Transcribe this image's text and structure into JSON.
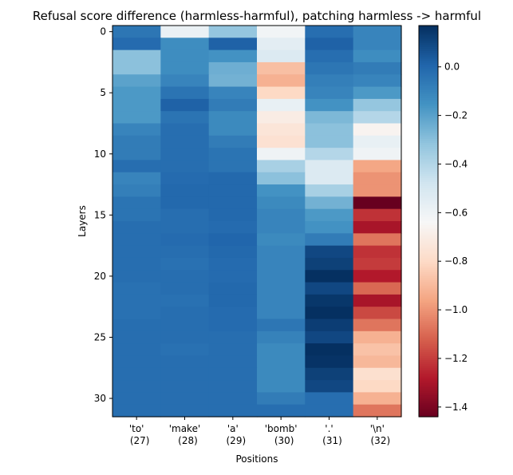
{
  "chart_data": {
    "type": "heatmap",
    "title": "Refusal score difference (harmless-harmful), patching harmless -> harmful",
    "xlabel": "Positions",
    "ylabel": "Layers",
    "columns": [
      {
        "token": "'to'",
        "position": "(27)"
      },
      {
        "token": "'make'",
        "position": "(28)"
      },
      {
        "token": "'a'",
        "position": "(29)"
      },
      {
        "token": "'bomb'",
        "position": "(30)"
      },
      {
        "token": "'.'",
        "position": "(31)"
      },
      {
        "token": "'\\n'",
        "position": "(32)"
      }
    ],
    "ytick_values": [
      0,
      5,
      10,
      15,
      20,
      25,
      30
    ],
    "rows": 32,
    "colormap": "RdBu",
    "color_range": [
      -1.44,
      0.17
    ],
    "colorbar_ticks": [
      0.0,
      -0.2,
      -0.4,
      -0.6,
      -0.8,
      -1.0,
      -1.2,
      -1.4
    ],
    "colorbar_tick_labels": [
      "0.0",
      "−0.2",
      "−0.4",
      "−0.6",
      "−0.8",
      "−1.0",
      "−1.2",
      "−1.4"
    ],
    "values": [
      [
        -0.05,
        -0.58,
        -0.32,
        -0.61,
        -0.02,
        -0.1
      ],
      [
        -0.01,
        -0.13,
        0.02,
        -0.55,
        0.02,
        -0.1
      ],
      [
        -0.3,
        -0.13,
        -0.15,
        -0.52,
        -0.02,
        -0.13
      ],
      [
        -0.3,
        -0.13,
        -0.24,
        -0.88,
        -0.05,
        -0.07
      ],
      [
        -0.2,
        -0.1,
        -0.25,
        -0.92,
        -0.08,
        -0.1
      ],
      [
        -0.17,
        -0.04,
        -0.1,
        -0.8,
        -0.1,
        -0.17
      ],
      [
        -0.17,
        0.02,
        -0.07,
        -0.57,
        -0.15,
        -0.32
      ],
      [
        -0.17,
        -0.04,
        -0.12,
        -0.7,
        -0.27,
        -0.4
      ],
      [
        -0.1,
        -0.02,
        -0.12,
        -0.74,
        -0.3,
        -0.66
      ],
      [
        -0.07,
        -0.02,
        -0.07,
        -0.76,
        -0.3,
        -0.57
      ],
      [
        -0.07,
        -0.02,
        -0.04,
        -0.6,
        -0.4,
        -0.6
      ],
      [
        -0.02,
        -0.02,
        -0.04,
        -0.37,
        -0.52,
        -0.95
      ],
      [
        -0.1,
        -0.01,
        0.0,
        -0.3,
        -0.52,
        -1.0
      ],
      [
        -0.08,
        0.0,
        0.0,
        -0.15,
        -0.37,
        -1.0
      ],
      [
        -0.04,
        0.0,
        0.0,
        -0.12,
        -0.25,
        -1.44
      ],
      [
        -0.04,
        -0.02,
        0.0,
        -0.1,
        -0.17,
        -1.22
      ],
      [
        -0.02,
        -0.02,
        -0.01,
        -0.1,
        -0.15,
        -1.3
      ],
      [
        -0.02,
        -0.01,
        0.01,
        -0.12,
        -0.07,
        -1.07
      ],
      [
        -0.02,
        -0.02,
        0.0,
        -0.1,
        0.1,
        -1.22
      ],
      [
        -0.02,
        -0.03,
        -0.01,
        -0.1,
        0.12,
        -1.2
      ],
      [
        -0.02,
        -0.02,
        -0.01,
        -0.1,
        0.17,
        -1.28
      ],
      [
        -0.03,
        -0.02,
        0.0,
        -0.1,
        0.1,
        -1.1
      ],
      [
        -0.03,
        -0.03,
        0.0,
        -0.1,
        0.15,
        -1.3
      ],
      [
        -0.03,
        -0.02,
        -0.01,
        -0.1,
        0.17,
        -1.17
      ],
      [
        -0.02,
        -0.02,
        -0.01,
        -0.05,
        0.13,
        -1.07
      ],
      [
        -0.02,
        -0.02,
        -0.02,
        -0.09,
        0.1,
        -0.92
      ],
      [
        -0.02,
        -0.03,
        -0.02,
        -0.12,
        0.17,
        -0.87
      ],
      [
        -0.02,
        -0.02,
        -0.02,
        -0.12,
        0.16,
        -0.9
      ],
      [
        -0.02,
        -0.02,
        -0.02,
        -0.12,
        0.12,
        -0.77
      ],
      [
        -0.02,
        -0.02,
        -0.02,
        -0.12,
        0.1,
        -0.8
      ],
      [
        -0.02,
        -0.02,
        -0.02,
        -0.07,
        -0.02,
        -0.92
      ],
      [
        -0.02,
        -0.02,
        -0.02,
        -0.02,
        -0.02,
        -1.07
      ]
    ]
  }
}
